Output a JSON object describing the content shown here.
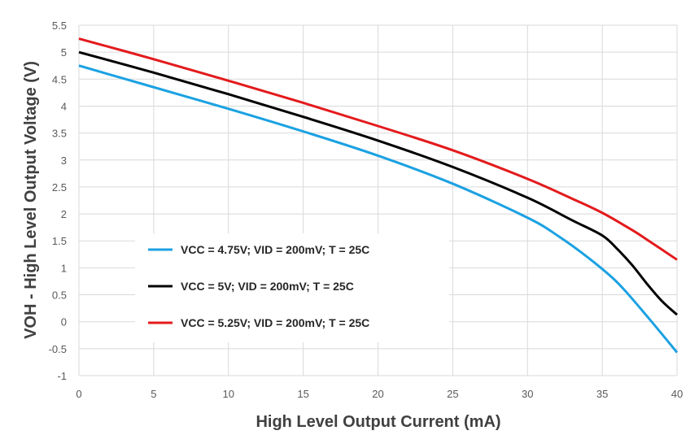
{
  "chart_data": {
    "type": "line",
    "title": "",
    "xlabel": "High Level Output Current (mA)",
    "ylabel": "VOH - High Level Output Voltage (V)",
    "xlim": [
      0,
      40
    ],
    "ylim": [
      -1,
      5.5
    ],
    "xticks": [
      "0",
      "5",
      "10",
      "15",
      "20",
      "25",
      "30",
      "35",
      "40"
    ],
    "yticks": [
      "-1",
      "-0.5",
      "0",
      "0.5",
      "1",
      "1.5",
      "2",
      "2.5",
      "3",
      "3.5",
      "4",
      "4.5",
      "5",
      "5.5"
    ],
    "grid": true,
    "legend_position": "lower-left",
    "series": [
      {
        "name": "VCC = 4.75V; VID = 200mV; T = 25C",
        "color": "#1ba1e2",
        "x": [
          0,
          5,
          10,
          15,
          20,
          25,
          30,
          32,
          34,
          36,
          38,
          40
        ],
        "y": [
          4.75,
          4.35,
          3.95,
          3.53,
          3.08,
          2.56,
          1.93,
          1.6,
          1.2,
          0.73,
          0.1,
          -0.57
        ]
      },
      {
        "name": "VCC = 5V; VID = 200mV; T = 25C",
        "color": "#000000",
        "x": [
          0,
          5,
          10,
          15,
          20,
          25,
          30,
          33,
          35,
          36,
          37,
          38,
          39,
          40
        ],
        "y": [
          5.0,
          4.62,
          4.22,
          3.8,
          3.36,
          2.87,
          2.3,
          1.88,
          1.6,
          1.35,
          1.05,
          0.7,
          0.38,
          0.13
        ]
      },
      {
        "name": "VCC = 5.25V; VID = 200mV; T = 25C",
        "color": "#e31a1c",
        "x": [
          0,
          5,
          10,
          15,
          20,
          25,
          30,
          33,
          35,
          37,
          38,
          40
        ],
        "y": [
          5.25,
          4.87,
          4.47,
          4.06,
          3.63,
          3.18,
          2.65,
          2.28,
          2.02,
          1.7,
          1.52,
          1.15
        ]
      }
    ]
  }
}
